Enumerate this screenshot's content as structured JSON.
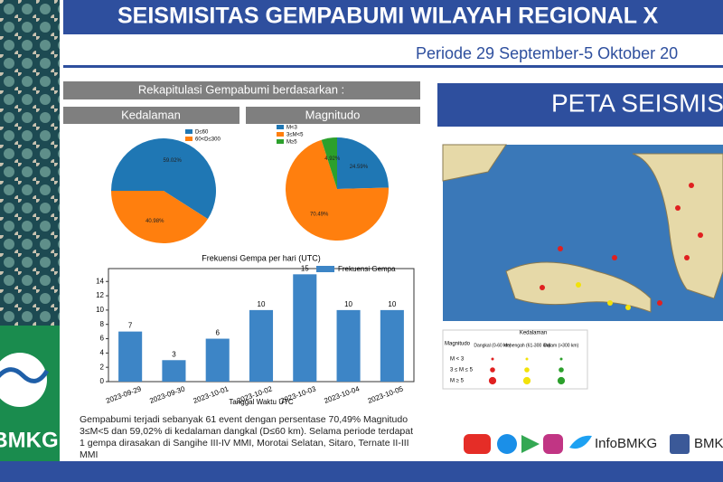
{
  "header": {
    "title": "SEISMISITAS GEMPABUMI WILAYAH REGIONAL X",
    "subtitle": "Periode 29 September-5 Oktober 20"
  },
  "recap": {
    "title": "Rekapitulasi Gempabumi berdasarkan :"
  },
  "chart_data": [
    {
      "type": "pie",
      "title": "Kedalaman",
      "categories": [
        "D≤60",
        "60<D≤300"
      ],
      "values": [
        59.02,
        40.98
      ],
      "value_labels": [
        "59.02%",
        "40.98%"
      ],
      "colors": [
        "#1f77b4",
        "#ff7f0e"
      ]
    },
    {
      "type": "pie",
      "title": "Magnitudo",
      "categories": [
        "M<3",
        "3≤M<5",
        "M≥5"
      ],
      "values": [
        24.59,
        70.49,
        4.92
      ],
      "value_labels": [
        "24.59%",
        "70.49%",
        "4.92%"
      ],
      "colors": [
        "#1f77b4",
        "#ff7f0e",
        "#2ca02c"
      ]
    },
    {
      "type": "bar",
      "title": "Frekuensi Gempa per hari (UTC)",
      "x_label": "Tanggal Waktu UTC",
      "categories": [
        "2023-09-29",
        "2023-09-30",
        "2023-10-01",
        "2023-10-02",
        "2023-10-03",
        "2023-10-04",
        "2023-10-05"
      ],
      "series": [
        {
          "name": "Frekuensi Gempa",
          "color": "#3d85c6",
          "values": [
            7,
            3,
            6,
            10,
            15,
            10,
            10
          ]
        }
      ],
      "ylim": [
        0,
        15.8
      ],
      "yticks": [
        0,
        2,
        4,
        6,
        8,
        10,
        12,
        14
      ]
    }
  ],
  "summary": "Gempabumi terjadi sebanyak 61 event dengan persentase 70,49% Magnitudo 3≤M<5 dan 59,02% di kedalaman dangkal (D≤60 km). Selama periode terdapat 1 gempa dirasakan di Sangihe III-IV MMI, Morotai Selatan, Sitaro, Ternate II-III MMI",
  "map": {
    "title": "PETA SEISMISI",
    "legend": {
      "magnitude": "Magnitudo",
      "depth": "Kedalaman",
      "columns": [
        "Dangkal (0-60 km)",
        "Menengah (61-300 km)",
        "Dalam (>300 km)"
      ],
      "rows": [
        "M < 3",
        "3 ≤ M ≤ 5",
        "M ≥ 5"
      ]
    }
  },
  "footer": {
    "handle": "InfoBMKG",
    "handle2": "BMK",
    "logo": "BMKG"
  }
}
